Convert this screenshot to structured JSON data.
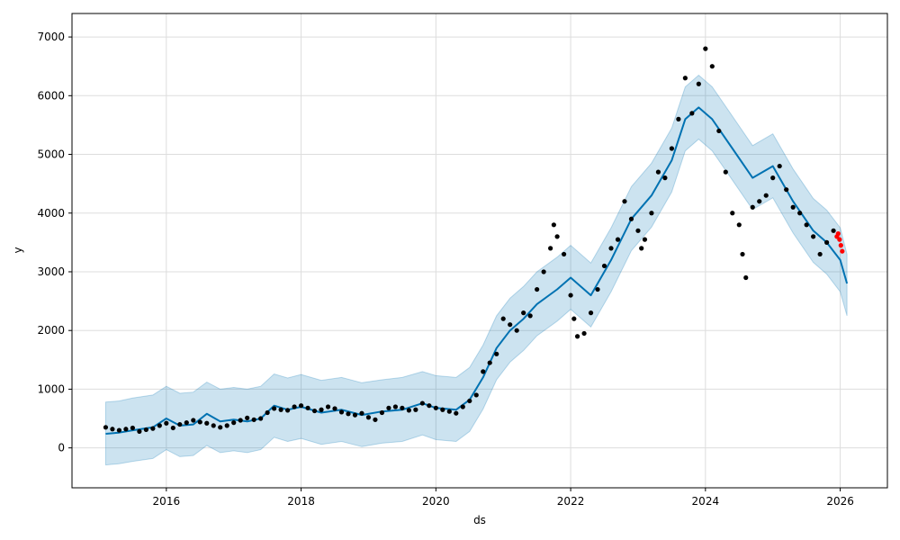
{
  "chart_data": {
    "type": "line",
    "title": "",
    "xlabel": "ds",
    "ylabel": "y",
    "xlim": [
      2014.6,
      2026.7
    ],
    "ylim": [
      -680,
      7400
    ],
    "grid": true,
    "legend": "none",
    "x_ticks": [
      2016,
      2018,
      2020,
      2022,
      2024,
      2026
    ],
    "x_tick_labels": [
      "2016",
      "2018",
      "2020",
      "2022",
      "2024",
      "2026"
    ],
    "y_ticks": [
      0,
      1000,
      2000,
      3000,
      4000,
      5000,
      6000,
      7000
    ],
    "y_tick_labels": [
      "0",
      "1000",
      "2000",
      "3000",
      "4000",
      "5000",
      "6000",
      "7000"
    ],
    "colors": {
      "forecast": "#0072B2",
      "band": "#0072B2",
      "observed": "#000000",
      "recent": "#ff0000"
    },
    "series": [
      {
        "role": "forecast",
        "x": [
          2015.1,
          2015.3,
          2015.5,
          2015.8,
          2016.0,
          2016.2,
          2016.4,
          2016.6,
          2016.8,
          2017.0,
          2017.2,
          2017.4,
          2017.6,
          2017.8,
          2018.0,
          2018.3,
          2018.6,
          2018.9,
          2019.2,
          2019.5,
          2019.8,
          2020.0,
          2020.3,
          2020.5,
          2020.7,
          2020.9,
          2021.1,
          2021.3,
          2021.5,
          2021.8,
          2022.0,
          2022.3,
          2022.6,
          2022.9,
          2023.2,
          2023.5,
          2023.7,
          2023.9,
          2024.1,
          2024.4,
          2024.7,
          2025.0,
          2025.3,
          2025.6,
          2025.8,
          2026.0,
          2026.1
        ],
        "y": [
          240,
          260,
          300,
          350,
          500,
          380,
          400,
          580,
          450,
          480,
          450,
          500,
          720,
          650,
          700,
          600,
          650,
          560,
          620,
          650,
          760,
          680,
          650,
          820,
          1200,
          1700,
          2000,
          2200,
          2450,
          2700,
          2900,
          2600,
          3200,
          3900,
          4300,
          4900,
          5600,
          5800,
          5600,
          5100,
          4600,
          4800,
          4200,
          3700,
          3500,
          3200,
          2800
        ]
      },
      {
        "role": "band-upper",
        "x": [
          2015.1,
          2015.3,
          2015.5,
          2015.8,
          2016.0,
          2016.2,
          2016.4,
          2016.6,
          2016.8,
          2017.0,
          2017.2,
          2017.4,
          2017.6,
          2017.8,
          2018.0,
          2018.3,
          2018.6,
          2018.9,
          2019.2,
          2019.5,
          2019.8,
          2020.0,
          2020.3,
          2020.5,
          2020.7,
          2020.9,
          2021.1,
          2021.3,
          2021.5,
          2021.8,
          2022.0,
          2022.3,
          2022.6,
          2022.9,
          2023.2,
          2023.5,
          2023.7,
          2023.9,
          2024.1,
          2024.4,
          2024.7,
          2025.0,
          2025.3,
          2025.6,
          2025.8,
          2026.0,
          2026.1
        ],
        "y": [
          780,
          800,
          850,
          900,
          1050,
          930,
          950,
          1120,
          1000,
          1030,
          1000,
          1050,
          1260,
          1190,
          1250,
          1150,
          1200,
          1110,
          1160,
          1200,
          1300,
          1230,
          1200,
          1370,
          1750,
          2250,
          2550,
          2750,
          3000,
          3250,
          3450,
          3150,
          3750,
          4450,
          4850,
          5450,
          6150,
          6350,
          6150,
          5650,
          5150,
          5350,
          4750,
          4250,
          4050,
          3750,
          3300
        ]
      },
      {
        "role": "band-lower",
        "x": [
          2015.1,
          2015.3,
          2015.5,
          2015.8,
          2016.0,
          2016.2,
          2016.4,
          2016.6,
          2016.8,
          2017.0,
          2017.2,
          2017.4,
          2017.6,
          2017.8,
          2018.0,
          2018.3,
          2018.6,
          2018.9,
          2019.2,
          2019.5,
          2019.8,
          2020.0,
          2020.3,
          2020.5,
          2020.7,
          2020.9,
          2021.1,
          2021.3,
          2021.5,
          2021.8,
          2022.0,
          2022.3,
          2022.6,
          2022.9,
          2023.2,
          2023.5,
          2023.7,
          2023.9,
          2024.1,
          2024.4,
          2024.7,
          2025.0,
          2025.3,
          2025.6,
          2025.8,
          2026.0,
          2026.1
        ],
        "y": [
          -290,
          -270,
          -230,
          -180,
          -30,
          -150,
          -130,
          40,
          -80,
          -50,
          -80,
          -30,
          180,
          110,
          160,
          60,
          110,
          20,
          80,
          110,
          220,
          140,
          110,
          280,
          660,
          1160,
          1460,
          1660,
          1910,
          2160,
          2360,
          2060,
          2660,
          3360,
          3760,
          4360,
          5060,
          5260,
          5060,
          4560,
          4060,
          4260,
          3660,
          3160,
          2960,
          2660,
          2250
        ]
      },
      {
        "role": "observed",
        "x": [
          2015.1,
          2015.2,
          2015.3,
          2015.4,
          2015.5,
          2015.6,
          2015.7,
          2015.8,
          2015.9,
          2016.0,
          2016.1,
          2016.2,
          2016.3,
          2016.4,
          2016.5,
          2016.6,
          2016.7,
          2016.8,
          2016.9,
          2017.0,
          2017.1,
          2017.2,
          2017.3,
          2017.4,
          2017.5,
          2017.6,
          2017.7,
          2017.8,
          2017.9,
          2018.0,
          2018.1,
          2018.2,
          2018.3,
          2018.4,
          2018.5,
          2018.6,
          2018.7,
          2018.8,
          2018.9,
          2019.0,
          2019.1,
          2019.2,
          2019.3,
          2019.4,
          2019.5,
          2019.6,
          2019.7,
          2019.8,
          2019.9,
          2020.0,
          2020.1,
          2020.2,
          2020.3,
          2020.4,
          2020.5,
          2020.6,
          2020.7,
          2020.8,
          2020.9,
          2021.0,
          2021.1,
          2021.2,
          2021.3,
          2021.4,
          2021.5,
          2021.6,
          2021.7,
          2021.75,
          2021.8,
          2021.9,
          2022.0,
          2022.05,
          2022.1,
          2022.2,
          2022.3,
          2022.4,
          2022.5,
          2022.6,
          2022.7,
          2022.8,
          2022.9,
          2023.0,
          2023.05,
          2023.1,
          2023.2,
          2023.3,
          2023.4,
          2023.5,
          2023.6,
          2023.7,
          2023.8,
          2023.9,
          2024.0,
          2024.1,
          2024.2,
          2024.3,
          2024.4,
          2024.5,
          2024.55,
          2024.6,
          2024.7,
          2024.8,
          2024.9,
          2025.0,
          2025.1,
          2025.2,
          2025.3,
          2025.4,
          2025.5,
          2025.6,
          2025.7,
          2025.8,
          2025.9
        ],
        "y": [
          350,
          320,
          300,
          320,
          340,
          280,
          310,
          330,
          380,
          420,
          340,
          400,
          430,
          470,
          440,
          420,
          380,
          350,
          380,
          430,
          470,
          510,
          480,
          500,
          600,
          670,
          650,
          640,
          700,
          720,
          680,
          630,
          650,
          700,
          670,
          610,
          580,
          560,
          590,
          520,
          480,
          600,
          680,
          700,
          680,
          640,
          650,
          760,
          720,
          680,
          650,
          620,
          590,
          700,
          800,
          900,
          1300,
          1450,
          1600,
          2200,
          2100,
          2000,
          2300,
          2250,
          2700,
          3000,
          3400,
          3800,
          3600,
          3300,
          2600,
          2200,
          1900,
          1950,
          2300,
          2700,
          3100,
          3400,
          3550,
          4200,
          3900,
          3700,
          3400,
          3550,
          4000,
          4700,
          4600,
          5100,
          5600,
          6300,
          5700,
          6200,
          6800,
          6500,
          5400,
          4700,
          4000,
          3800,
          3300,
          2900,
          4100,
          4200,
          4300,
          4600,
          4800,
          4400,
          4100,
          4000,
          3800,
          3600,
          3300,
          3500,
          3700
        ]
      },
      {
        "role": "recent",
        "x": [
          2025.95,
          2025.97,
          2025.99,
          2026.01,
          2026.03
        ],
        "y": [
          3600,
          3650,
          3550,
          3450,
          3350
        ]
      }
    ]
  }
}
